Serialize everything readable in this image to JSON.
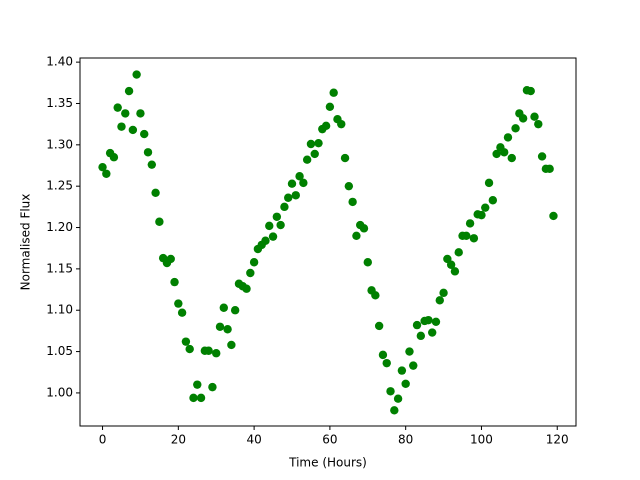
{
  "chart_data": {
    "type": "scatter",
    "xlabel": "Time (Hours)",
    "ylabel": "Normalised Flux",
    "color": "#008000",
    "xlim": [
      -5.95,
      124.95
    ],
    "ylim": [
      0.96,
      1.405
    ],
    "xticks": [
      0,
      20,
      40,
      60,
      80,
      100,
      120
    ],
    "yticks": [
      {
        "value": 1.0,
        "label": "1.00"
      },
      {
        "value": 1.05,
        "label": "1.05"
      },
      {
        "value": 1.1,
        "label": "1.10"
      },
      {
        "value": 1.15,
        "label": "1.15"
      },
      {
        "value": 1.2,
        "label": "1.20"
      },
      {
        "value": 1.25,
        "label": "1.25"
      },
      {
        "value": 1.3,
        "label": "1.30"
      },
      {
        "value": 1.35,
        "label": "1.35"
      },
      {
        "value": 1.4,
        "label": "1.40"
      }
    ],
    "x": [
      0,
      1,
      2,
      3,
      4,
      5,
      6,
      7,
      8,
      9,
      10,
      11,
      12,
      13,
      14,
      15,
      16,
      17,
      18,
      19,
      20,
      21,
      22,
      23,
      24,
      25,
      26,
      27,
      28,
      29,
      30,
      31,
      32,
      33,
      34,
      35,
      36,
      37,
      38,
      39,
      40,
      41,
      42,
      43,
      44,
      45,
      46,
      47,
      48,
      49,
      50,
      51,
      52,
      53,
      54,
      55,
      56,
      57,
      58,
      59,
      60,
      61,
      62,
      63,
      64,
      65,
      66,
      67,
      68,
      69,
      70,
      71,
      72,
      73,
      74,
      75,
      76,
      77,
      78,
      79,
      80,
      81,
      82,
      83,
      84,
      85,
      86,
      87,
      88,
      89,
      90,
      91,
      92,
      93,
      94,
      95,
      96,
      97,
      98,
      99,
      100,
      101,
      102,
      103,
      104,
      105,
      106,
      107,
      108,
      109,
      110,
      111,
      112,
      113,
      114,
      115,
      116,
      117,
      118,
      119
    ],
    "values": [
      1.273,
      1.265,
      1.29,
      1.285,
      1.345,
      1.322,
      1.338,
      1.365,
      1.318,
      1.385,
      1.338,
      1.313,
      1.291,
      1.276,
      1.242,
      1.207,
      1.163,
      1.157,
      1.162,
      1.134,
      1.108,
      1.097,
      1.062,
      1.053,
      0.994,
      1.01,
      0.994,
      1.051,
      1.051,
      1.007,
      1.048,
      1.08,
      1.103,
      1.077,
      1.058,
      1.1,
      1.132,
      1.129,
      1.126,
      1.145,
      1.158,
      1.174,
      1.179,
      1.184,
      1.202,
      1.189,
      1.213,
      1.203,
      1.225,
      1.236,
      1.253,
      1.239,
      1.262,
      1.254,
      1.282,
      1.301,
      1.289,
      1.302,
      1.319,
      1.323,
      1.346,
      1.363,
      1.331,
      1.325,
      1.284,
      1.25,
      1.231,
      1.19,
      1.203,
      1.199,
      1.158,
      1.124,
      1.118,
      1.081,
      1.046,
      1.036,
      1.002,
      0.979,
      0.993,
      1.027,
      1.011,
      1.05,
      1.033,
      1.082,
      1.069,
      1.087,
      1.088,
      1.073,
      1.086,
      1.112,
      1.121,
      1.162,
      1.155,
      1.147,
      1.17,
      1.19,
      1.19,
      1.205,
      1.187,
      1.216,
      1.215,
      1.224,
      1.254,
      1.233,
      1.289,
      1.297,
      1.291,
      1.309,
      1.284,
      1.32,
      1.338,
      1.332,
      1.366,
      1.365,
      1.334,
      1.325,
      1.286,
      1.271,
      1.271,
      1.214
    ]
  }
}
